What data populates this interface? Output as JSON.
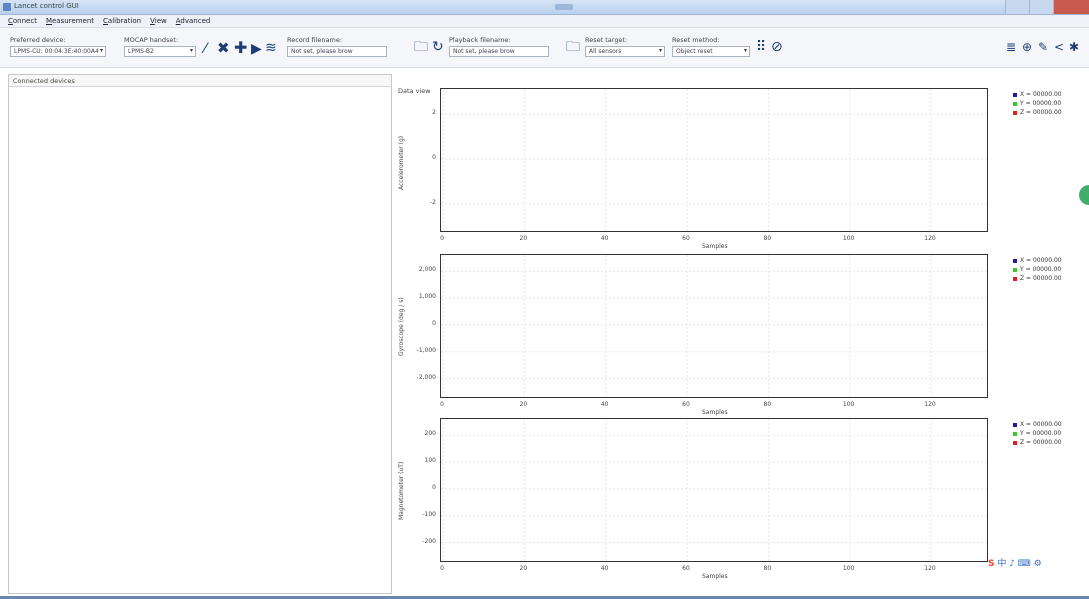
{
  "window": {
    "title": "Lancet control GUI"
  },
  "menu": [
    "Connect",
    "Measurement",
    "Calibration",
    "View",
    "Advanced"
  ],
  "toolbar": {
    "preferred_device_label": "Preferred device:",
    "preferred_device_value": "LPMS-CU: 00:04:3E:40:00A4",
    "mocap_label": "MOCAP handset:",
    "mocap_value": "LPMS-B2",
    "record_label": "Record filename:",
    "record_value": "Not set, please brow",
    "playback_label": "Playback filename:",
    "playback_value": "Not set, please brow",
    "reset_target_label": "Reset target:",
    "reset_target_value": "All sensors",
    "reset_method_label": "Reset method:",
    "reset_method_value": "Object reset"
  },
  "left_panel": {
    "header": "Connected devices"
  },
  "data_view_label": "Data view",
  "icons": {
    "toolbar_left": [
      "connect-icon",
      "disconnect-icon",
      "add-sensor-icon",
      "play-icon",
      "record-icon"
    ],
    "toolbar_right": [
      "graph-window-icon",
      "target-icon",
      "pen-icon",
      "share-icon",
      "star-icon"
    ]
  },
  "plots": [
    {
      "ylabel": "Accelerometer (g)",
      "yticks": [
        "2",
        "0",
        "-2"
      ],
      "xlabel": "Samples",
      "xticks": [
        "0",
        "20",
        "40",
        "60",
        "80",
        "100",
        "120"
      ],
      "legend": [
        "X = 00000.00",
        "Y = 00000.00",
        "Z = 00000.00"
      ]
    },
    {
      "ylabel": "Gyroscope (deg / s)",
      "yticks": [
        "2,000",
        "1,000",
        "0",
        "-1,000",
        "-2,000"
      ],
      "xlabel": "Samples",
      "xticks": [
        "0",
        "20",
        "40",
        "60",
        "80",
        "100",
        "120"
      ],
      "legend": [
        "X = 00000.00",
        "Y = 00000.00",
        "Z = 00000.00"
      ]
    },
    {
      "ylabel": "Magnetometer (uT)",
      "yticks": [
        "200",
        "100",
        "0",
        "-100",
        "-200"
      ],
      "xlabel": "Samples",
      "xticks": [
        "0",
        "20",
        "40",
        "60",
        "80",
        "100",
        "120"
      ],
      "legend": [
        "X = 00000.00",
        "Y = 00000.00",
        "Z = 00000.00"
      ]
    }
  ],
  "legend_colors": [
    "#1a1aa6",
    "#33cc33",
    "#e02020"
  ]
}
